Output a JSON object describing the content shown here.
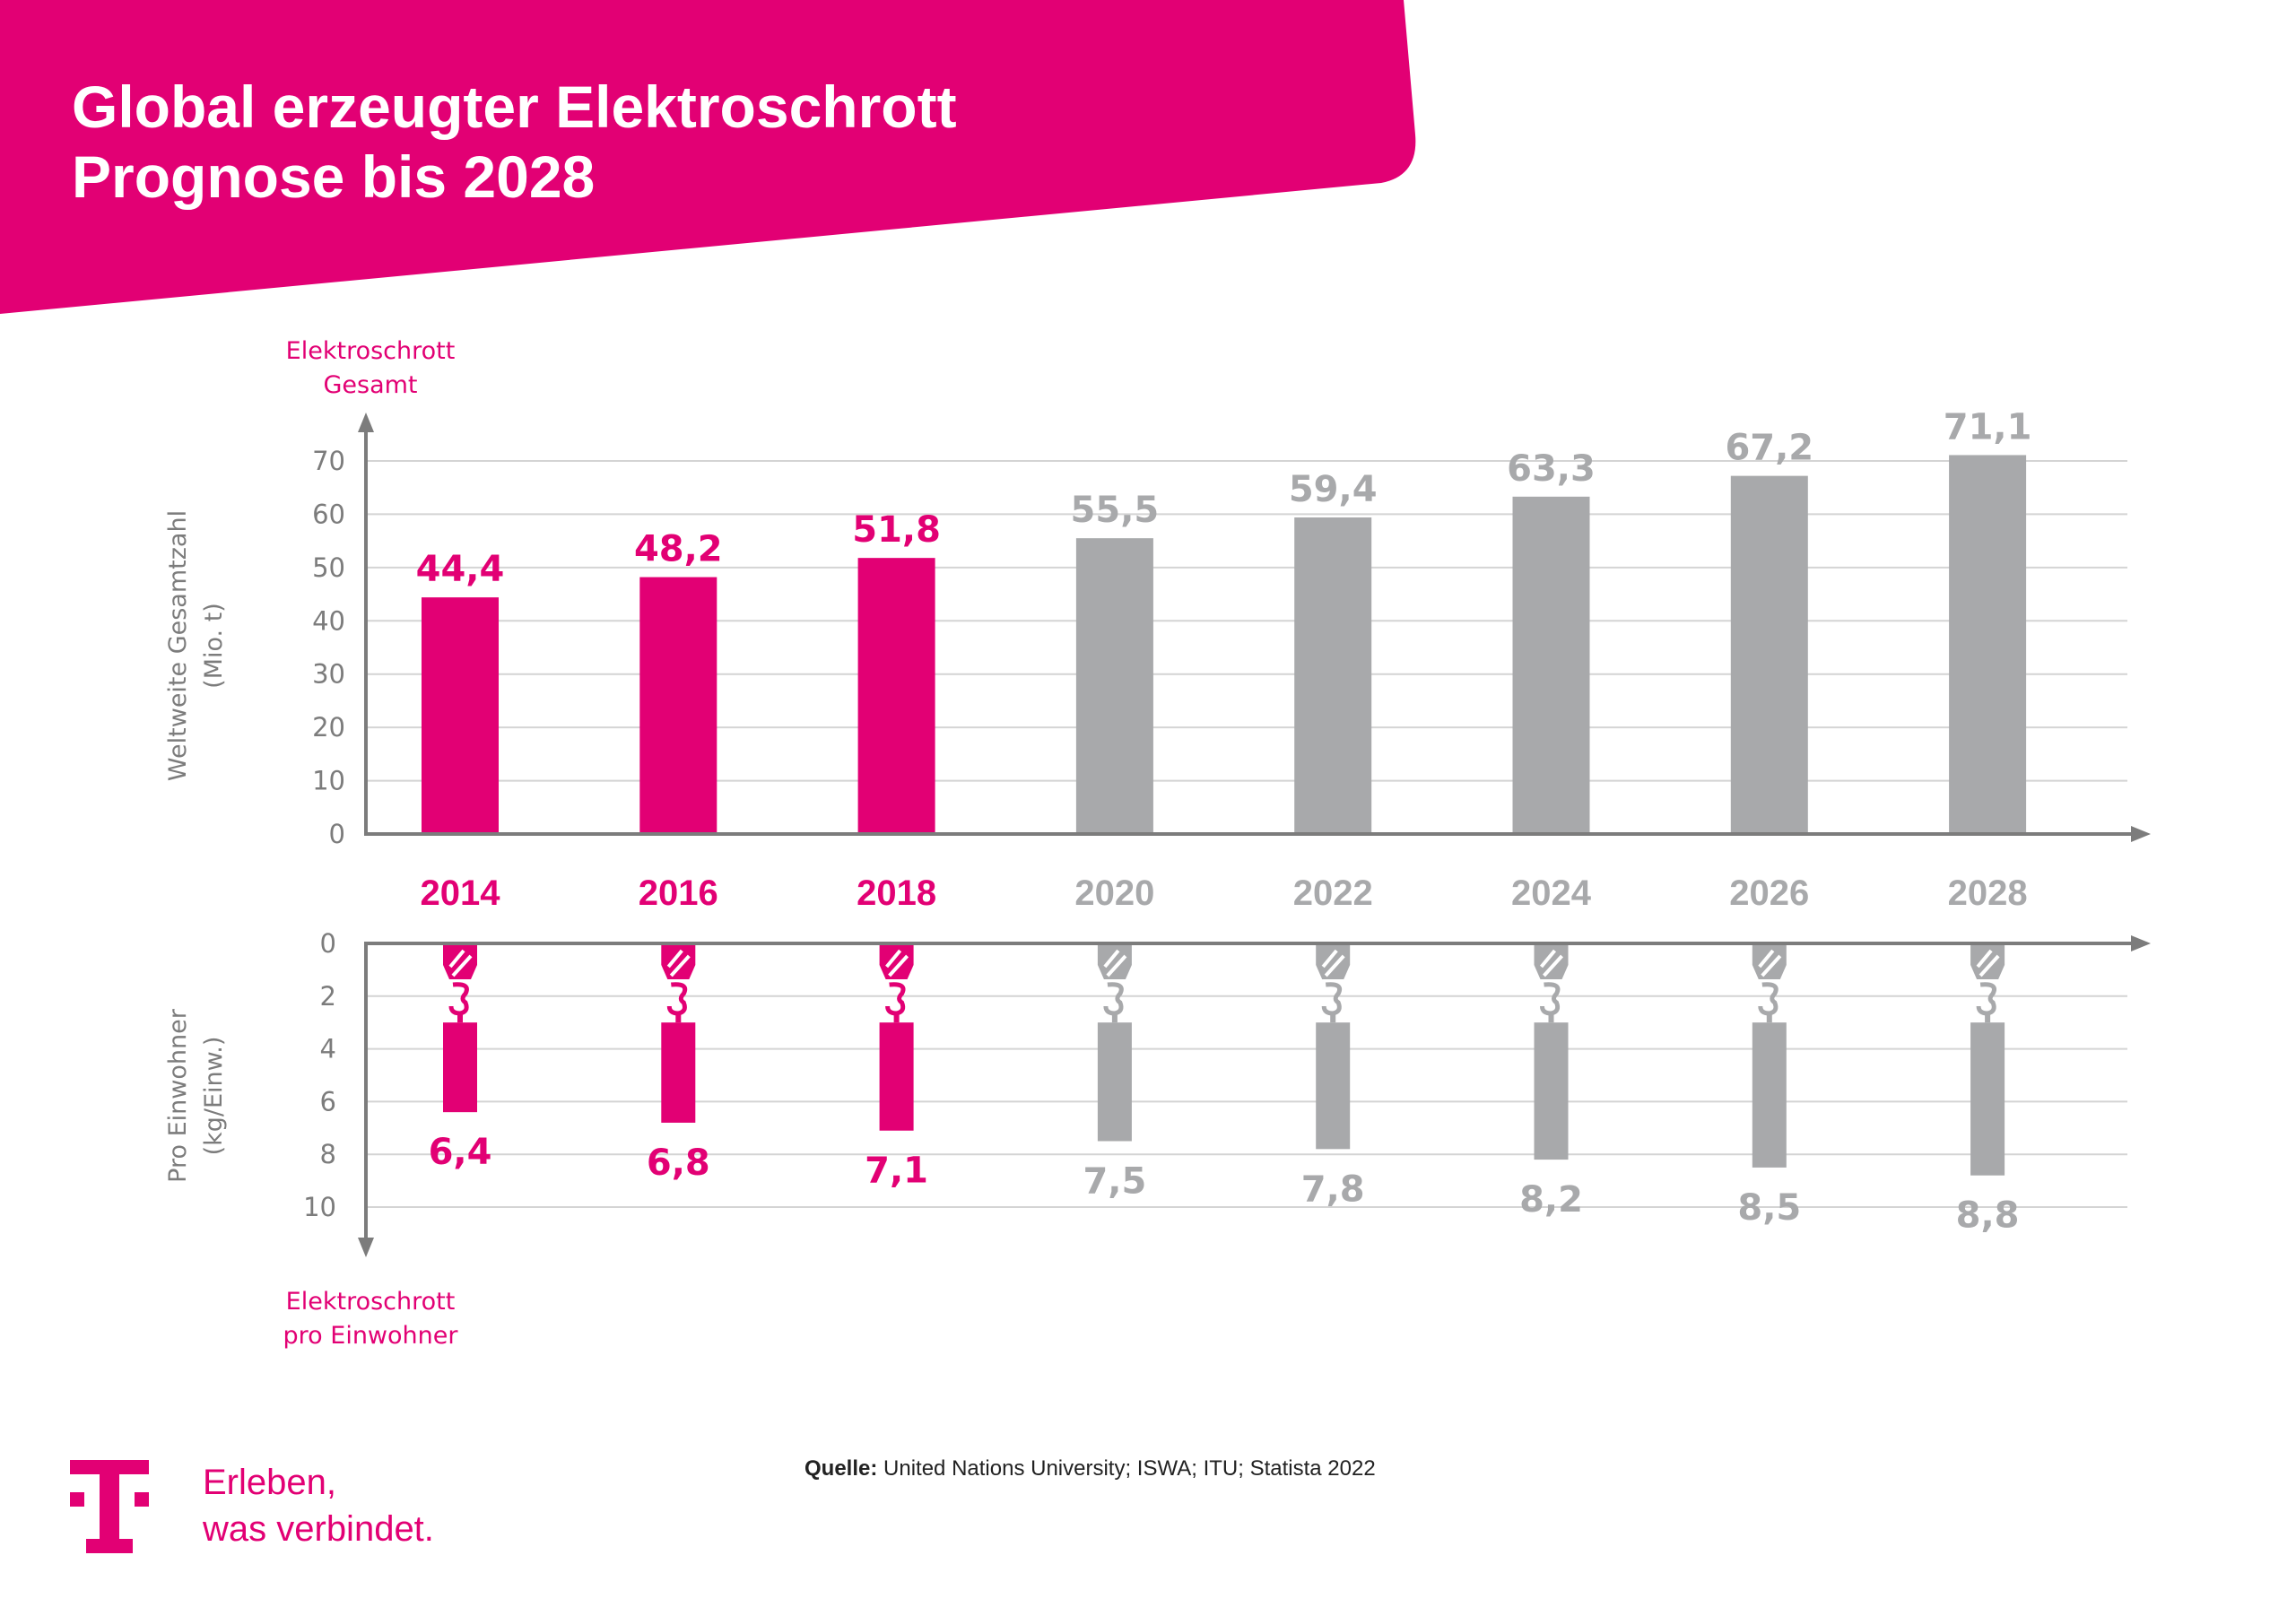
{
  "header": {
    "title_line1": "Global erzeugter Elektroschrott",
    "title_line2": "Prognose bis 2028"
  },
  "colors": {
    "accent": "#e20074",
    "forecast": "#a8a9ab",
    "axis": "#7c7c7c",
    "grid": "#d4d4d4"
  },
  "chart_data": [
    {
      "type": "bar",
      "title": "Elektroschrott Gesamt",
      "annotation_top": [
        "Elektroschrott",
        "Gesamt"
      ],
      "ylabel": [
        "Weltweite Gesamtzahl",
        "(Mio. t)"
      ],
      "categories": [
        "2014",
        "2016",
        "2018",
        "2020",
        "2022",
        "2024",
        "2026",
        "2028"
      ],
      "values": [
        44.4,
        48.2,
        51.8,
        55.5,
        59.4,
        63.3,
        67.2,
        71.1
      ],
      "value_labels": [
        "44,4",
        "48,2",
        "51,8",
        "55,5",
        "59,4",
        "63,3",
        "67,2",
        "71,1"
      ],
      "highlighted": [
        true,
        true,
        true,
        false,
        false,
        false,
        false,
        false
      ],
      "yticks": [
        0,
        10,
        20,
        30,
        40,
        50,
        60,
        70
      ],
      "ylim": [
        0,
        70
      ],
      "grid": true
    },
    {
      "type": "bar",
      "orientation": "downward",
      "title": "Elektroschrott pro Einwohner",
      "annotation_bottom": [
        "Elektroschrott",
        "pro Einwohner"
      ],
      "ylabel": [
        "Pro Einwohner",
        "(kg/Einw.)"
      ],
      "categories": [
        "2014",
        "2016",
        "2018",
        "2020",
        "2022",
        "2024",
        "2026",
        "2028"
      ],
      "values": [
        6.4,
        6.8,
        7.1,
        7.5,
        7.8,
        8.2,
        8.5,
        8.8
      ],
      "value_labels": [
        "6,4",
        "6,8",
        "7,1",
        "7,5",
        "7,8",
        "8,2",
        "8,5",
        "8,8"
      ],
      "highlighted": [
        true,
        true,
        true,
        false,
        false,
        false,
        false,
        false
      ],
      "yticks": [
        0,
        2,
        4,
        6,
        8,
        10
      ],
      "ylim": [
        0,
        10
      ],
      "grid": true,
      "icon": "crane-hook-icon"
    }
  ],
  "footer": {
    "slogan_line1": "Erleben,",
    "slogan_line2": "was verbindet.",
    "source_label": "Quelle:",
    "source_text": " United Nations University; ISWA; ITU; Statista 2022"
  }
}
